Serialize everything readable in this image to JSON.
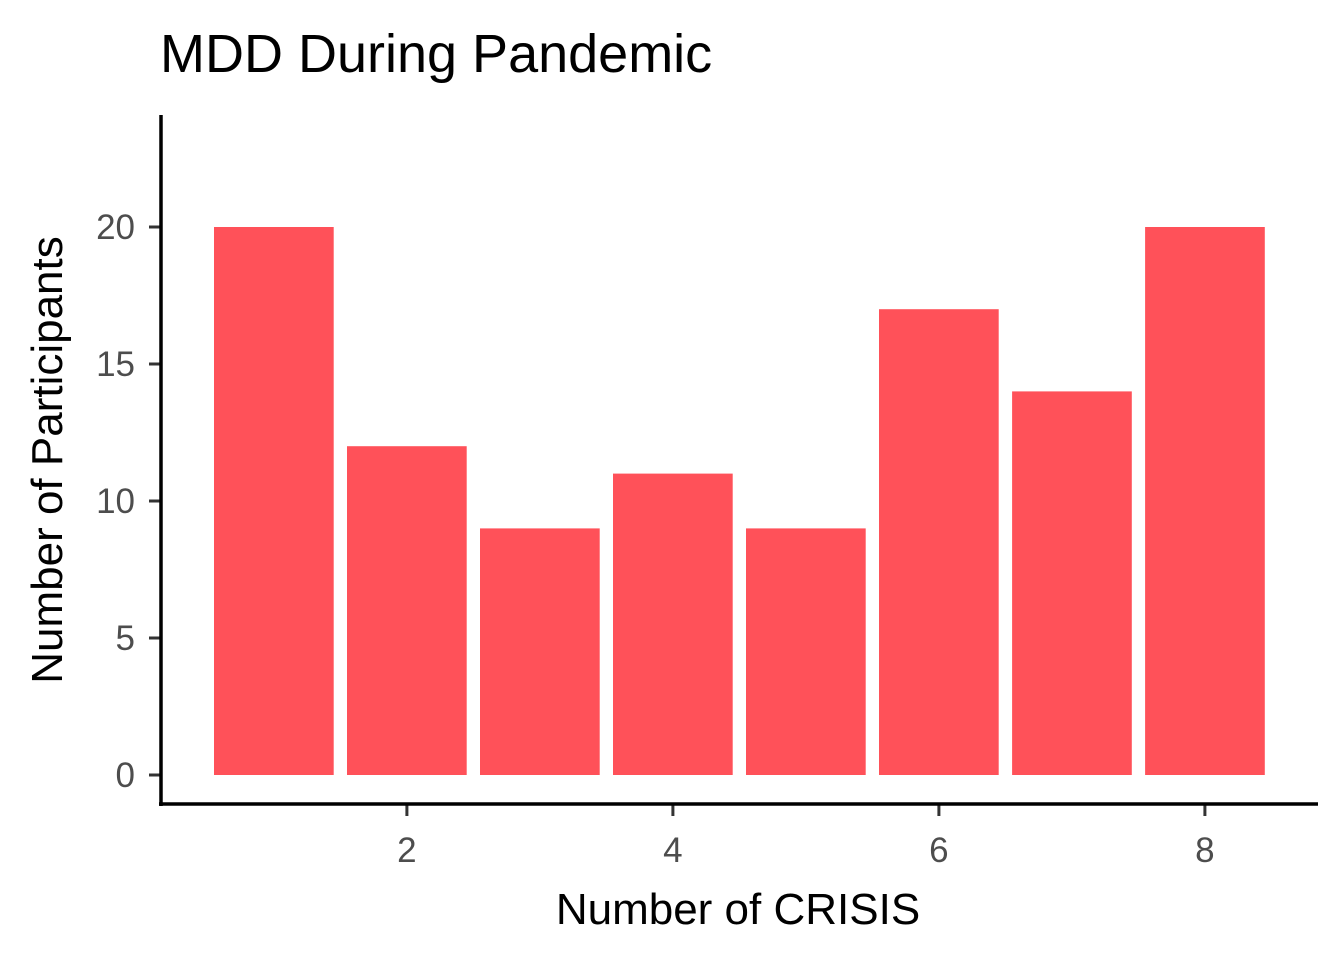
{
  "chart_data": {
    "type": "bar",
    "title": "MDD During Pandemic",
    "xlabel": "Number of CRISIS",
    "ylabel": "Number of Participants",
    "x": [
      1,
      2,
      3,
      4,
      5,
      6,
      7,
      8
    ],
    "values": [
      20,
      12,
      9,
      11,
      9,
      17,
      14,
      20
    ],
    "xticks": [
      2,
      4,
      6,
      8
    ],
    "yticks": [
      0,
      5,
      10,
      15,
      20
    ],
    "xlim": [
      0.5,
      8.5
    ],
    "ylim": [
      0,
      24
    ],
    "grid": false,
    "bar_color": "#FF5159"
  }
}
